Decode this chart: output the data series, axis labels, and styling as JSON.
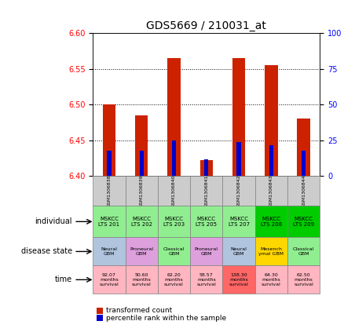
{
  "title": "GDS5669 / 210031_at",
  "samples": [
    "GSM1306838",
    "GSM1306839",
    "GSM1306840",
    "GSM1306841",
    "GSM1306842",
    "GSM1306843",
    "GSM1306844"
  ],
  "bar_values": [
    6.5,
    6.485,
    6.565,
    6.422,
    6.565,
    6.555,
    6.48
  ],
  "blue_values": [
    6.435,
    6.435,
    6.45,
    6.423,
    6.448,
    6.443,
    6.435
  ],
  "ylim": [
    6.4,
    6.6
  ],
  "yticks": [
    6.4,
    6.45,
    6.5,
    6.55,
    6.6
  ],
  "right_yticks": [
    0,
    25,
    50,
    75,
    100
  ],
  "right_ylim": [
    0,
    100
  ],
  "individual_labels": [
    "MSKCC\nLTS 201",
    "MSKCC\nLTS 202",
    "MSKCC\nLTS 203",
    "MSKCC\nLTS 205",
    "MSKCC\nLTS 207",
    "MSKCC\nLTS 208",
    "MSKCC\nLTS 209"
  ],
  "individual_colors": [
    "#90EE90",
    "#90EE90",
    "#90EE90",
    "#90EE90",
    "#90EE90",
    "#00CC00",
    "#00CC00"
  ],
  "disease_labels": [
    "Neural\nGBM",
    "Proneural\nGBM",
    "Classical\nGBM",
    "Proneural\nGBM",
    "Neural\nGBM",
    "Mesench\nymal GBM",
    "Classical\nGBM"
  ],
  "disease_colors": [
    "#B0C4DE",
    "#DDA0DD",
    "#90EE90",
    "#DDA0DD",
    "#B0C4DE",
    "#FFD700",
    "#90EE90"
  ],
  "time_labels": [
    "92.07\nmonths\nsurvival",
    "50.60\nmonths\nsurvival",
    "62.20\nmonths\nsurvival",
    "58.57\nmonths\nsurvival",
    "138.30\nmonths\nsurvival",
    "64.30\nmonths\nsurvival",
    "62.50\nmonths\nsurvival"
  ],
  "time_colors": [
    "#FFB6C1",
    "#FFB6C1",
    "#FFB6C1",
    "#FFB6C1",
    "#FF6666",
    "#FFB6C1",
    "#FFB6C1"
  ],
  "bar_color": "#CC2200",
  "blue_color": "#0000CC",
  "background_color": "#FFFFFF",
  "header_bg": "#CCCCCC",
  "legend1": "transformed count",
  "legend2": "percentile rank within the sample"
}
